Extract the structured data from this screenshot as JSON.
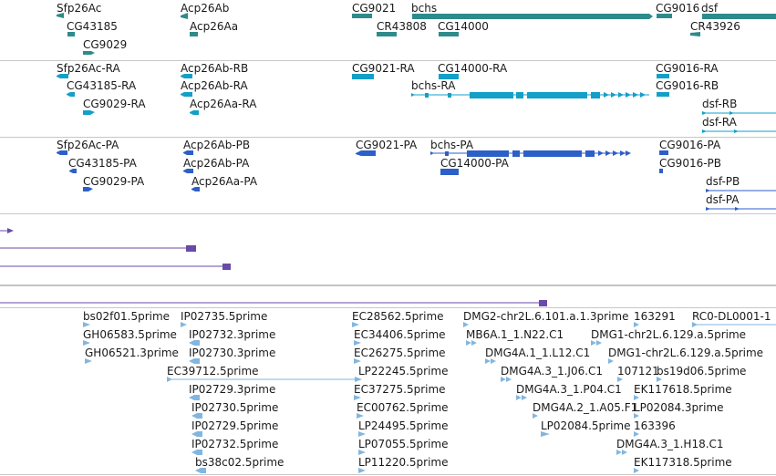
{
  "colors": {
    "gene": "#2e8b8b",
    "transcript": "#12a0c8",
    "protein": "#2d5fc8",
    "insertion": "#6a4aa8",
    "est": "#82b6e0",
    "separator": "#c8c8c8",
    "label": "#1a1a1a"
  },
  "tracks": {
    "genes": {
      "labels": [
        "Sfp26Ac",
        "CG43185",
        "CG9029",
        "Acp26Ab",
        "Acp26Aa",
        "CG9021",
        "bchs",
        "CR43808",
        "CG14000",
        "CG9016",
        "dsf",
        "CR43926"
      ]
    },
    "transcripts": {
      "labels": [
        "Sfp26Ac-RA",
        "CG43185-RA",
        "CG9029-RA",
        "Acp26Ab-RB",
        "Acp26Ab-RA",
        "Acp26Aa-RA",
        "CG9021-RA",
        "CG14000-RA",
        "bchs-RA",
        "CG9016-RA",
        "CG9016-RB",
        "dsf-RB",
        "dsf-RA"
      ]
    },
    "proteins": {
      "labels": [
        "Sfp26Ac-PA",
        "CG43185-PA",
        "CG9029-PA",
        "Acp26Ab-PB",
        "Acp26Ab-PA",
        "Acp26Aa-PA",
        "CG9021-PA",
        "bchs-PA",
        "CG14000-PA",
        "CG9016-PA",
        "CG9016-PB",
        "dsf-PB",
        "dsf-PA"
      ]
    },
    "ests": {
      "labels": [
        "bs02f01.5prime",
        "GH06583.5prime",
        "GH06521.3prime",
        "IP02735.5prime",
        "IP02732.3prime",
        "IP02730.3prime",
        "EC39712.5prime",
        "IP02729.3prime",
        "IP02730.5prime",
        "IP02729.5prime",
        "IP02732.5prime",
        "bs38c02.5prime",
        "EC28562.5prime",
        "EC34406.5prime",
        "EC26275.5prime",
        "LP22245.5prime",
        "EC37275.5prime",
        "EC00762.5prime",
        "LP24495.5prime",
        "LP07055.5prime",
        "LP11220.5prime",
        "DMG2-chr2L.6.101.a.1.3prime",
        "MB6A.1_1.N22.C1",
        "DMG4A.1_1.L12.C1",
        "DMG4A.3_1.J06.C1",
        "DMG4A.3_1.P04.C1",
        "DMG4A.2_1.A05.F1",
        "LP02084.5prime",
        "163291",
        "RC0-DL0001-1",
        "DMG1-chr2L.6.129.a.5prime",
        "DMG1-chr2L.6.129.a.5prime",
        "107121",
        "bs19d06.5prime",
        "EK117618.5prime",
        "LP02084.3prime",
        "163396",
        "DMG4A.3_1.H18.C1",
        "EK117318.5prime"
      ]
    }
  }
}
